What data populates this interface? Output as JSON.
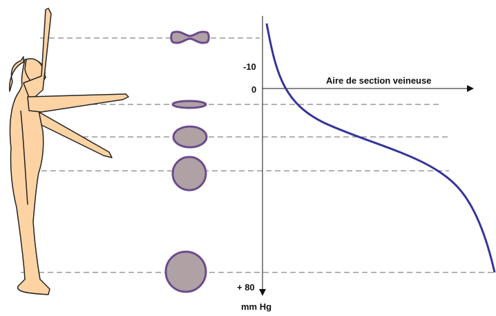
{
  "axis": {
    "x_label": "Aire de section veineuse",
    "y_unit": "mm Hg",
    "tick_minus_10": "-10",
    "tick_zero": "0",
    "tick_plus_80": "+ 80"
  },
  "colors": {
    "skin_fill": "#fdd3a3",
    "body_outline": "#222222",
    "vein_fill": "#b0a1a4",
    "vein_outline": "#6b4b8e",
    "curve": "#34349a",
    "dashed_line": "#666666",
    "axis": "#111111"
  },
  "icons": {
    "figure": "standing-human-silhouette-icon",
    "vein_sections": [
      "collapsed-vein-icon",
      "flattened-vein-icon",
      "oval-vein-icon",
      "round-vein-icon",
      "distended-vein-icon"
    ]
  }
}
